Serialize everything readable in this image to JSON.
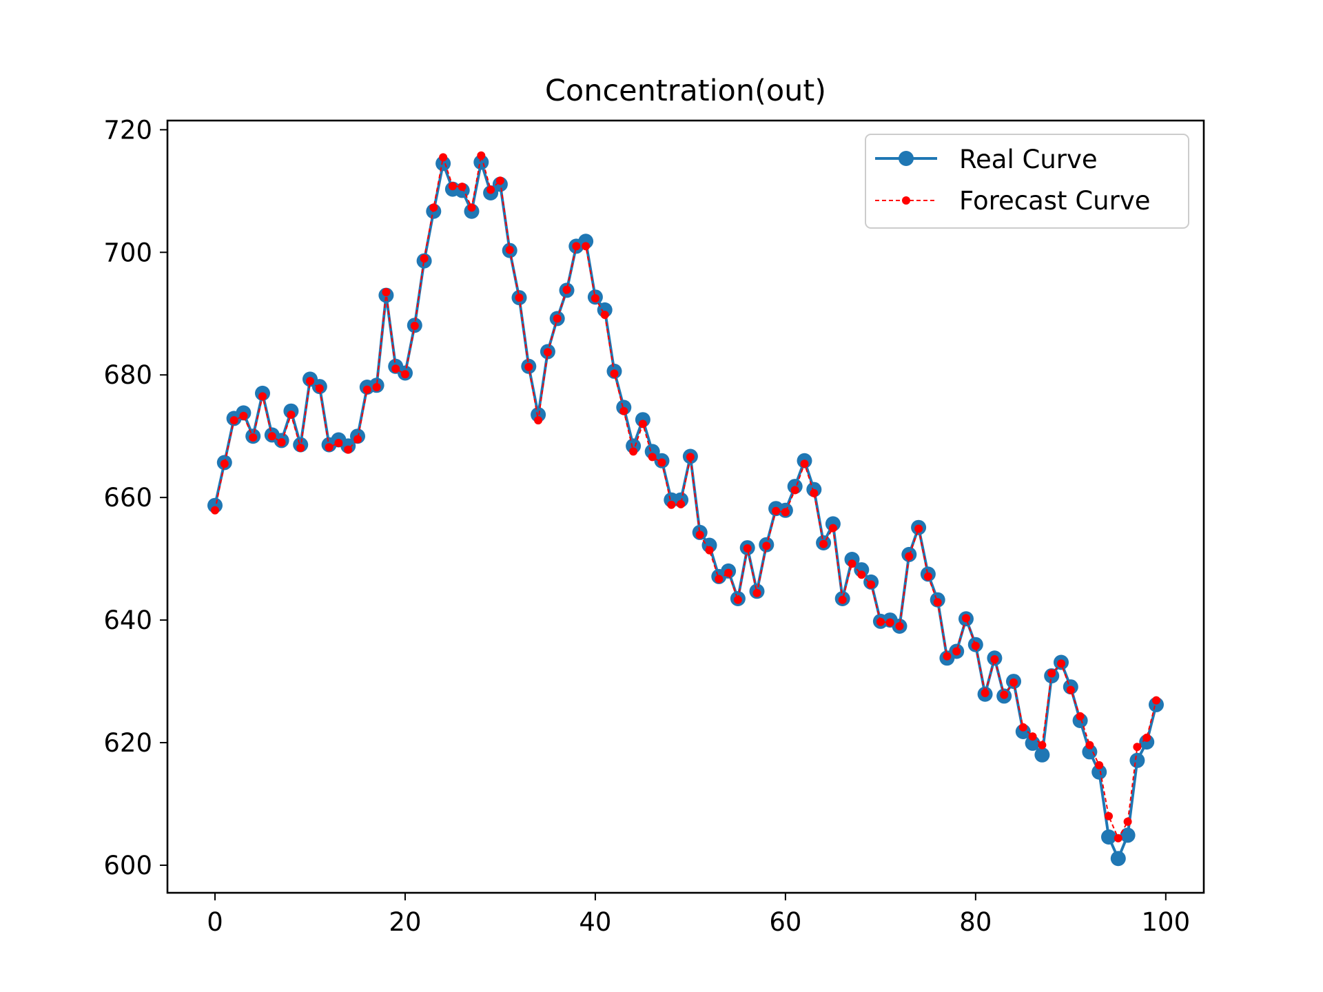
{
  "chart_data": {
    "type": "line",
    "title": "Concentration(out)",
    "xlabel": "",
    "ylabel": "",
    "xlim": [
      -5,
      104
    ],
    "ylim": [
      595.5,
      721.5
    ],
    "xticks": [
      0,
      20,
      40,
      60,
      80,
      100
    ],
    "yticks": [
      600,
      620,
      640,
      660,
      680,
      700,
      720
    ],
    "grid": false,
    "legend_position": "top-right",
    "x": [
      0,
      1,
      2,
      3,
      4,
      5,
      6,
      7,
      8,
      9,
      10,
      11,
      12,
      13,
      14,
      15,
      16,
      17,
      18,
      19,
      20,
      21,
      22,
      23,
      24,
      25,
      26,
      27,
      28,
      29,
      30,
      31,
      32,
      33,
      34,
      35,
      36,
      37,
      38,
      39,
      40,
      41,
      42,
      43,
      44,
      45,
      46,
      47,
      48,
      49,
      50,
      51,
      52,
      53,
      54,
      55,
      56,
      57,
      58,
      59,
      60,
      61,
      62,
      63,
      64,
      65,
      66,
      67,
      68,
      69,
      70,
      71,
      72,
      73,
      74,
      75,
      76,
      77,
      78,
      79,
      80,
      81,
      82,
      83,
      84,
      85,
      86,
      87,
      88,
      89,
      90,
      91,
      92,
      93,
      94,
      95,
      96,
      97,
      98,
      99
    ],
    "series": [
      {
        "name": "Real Curve",
        "color": "#1f77b4",
        "style": "solid-line-large-markers",
        "values": [
          658.7,
          665.7,
          672.9,
          673.8,
          670.0,
          677.0,
          670.2,
          669.3,
          674.1,
          668.6,
          679.3,
          678.1,
          668.6,
          669.4,
          668.4,
          670.0,
          678.0,
          678.3,
          693.0,
          681.4,
          680.3,
          688.1,
          698.6,
          706.7,
          714.5,
          710.3,
          710.1,
          706.7,
          714.7,
          709.7,
          711.1,
          700.3,
          692.6,
          681.4,
          673.5,
          683.8,
          689.2,
          693.8,
          701.0,
          701.8,
          692.7,
          690.6,
          680.6,
          674.7,
          668.4,
          672.7,
          667.5,
          666.0,
          659.6,
          659.6,
          666.7,
          654.3,
          652.2,
          647.1,
          648.0,
          643.5,
          651.8,
          644.7,
          652.3,
          658.2,
          657.9,
          661.8,
          666.0,
          661.3,
          652.6,
          655.7,
          643.5,
          649.9,
          648.2,
          646.2,
          639.8,
          640.0,
          639.0,
          650.7,
          655.1,
          647.5,
          643.3,
          633.8,
          634.9,
          640.2,
          636.0,
          627.9,
          633.8,
          627.6,
          630.0,
          621.8,
          619.9,
          618.0,
          630.9,
          633.1,
          629.1,
          623.6,
          618.5,
          615.2,
          604.6,
          601.1,
          604.9,
          617.1,
          620.1,
          626.2
        ]
      },
      {
        "name": "Forecast Curve",
        "color": "#ff0000",
        "style": "dashed-line-small-markers",
        "values": [
          657.9,
          665.5,
          672.6,
          673.3,
          669.8,
          676.5,
          670.0,
          669.0,
          673.5,
          668.1,
          679.0,
          677.8,
          668.2,
          668.9,
          667.8,
          669.5,
          677.6,
          678.0,
          693.5,
          681.0,
          680.1,
          688.0,
          699.0,
          707.3,
          715.5,
          710.8,
          710.7,
          707.3,
          715.8,
          710.2,
          711.7,
          700.4,
          692.6,
          681.3,
          672.6,
          683.7,
          689.2,
          693.9,
          701.0,
          701.0,
          692.5,
          689.8,
          680.2,
          674.1,
          667.5,
          672.0,
          666.6,
          665.7,
          658.8,
          658.9,
          666.6,
          653.9,
          651.4,
          646.7,
          647.7,
          643.3,
          651.7,
          644.4,
          652.1,
          657.8,
          657.6,
          661.2,
          665.5,
          660.7,
          652.4,
          655.0,
          643.3,
          649.2,
          647.4,
          645.8,
          639.7,
          639.6,
          639.0,
          650.4,
          654.9,
          647.1,
          642.9,
          634.1,
          634.9,
          640.3,
          635.8,
          628.1,
          633.6,
          627.8,
          629.8,
          622.5,
          621.0,
          619.6,
          631.3,
          632.9,
          628.6,
          624.3,
          619.6,
          616.3,
          608.0,
          604.4,
          607.1,
          619.3,
          620.8,
          626.9
        ]
      }
    ]
  }
}
